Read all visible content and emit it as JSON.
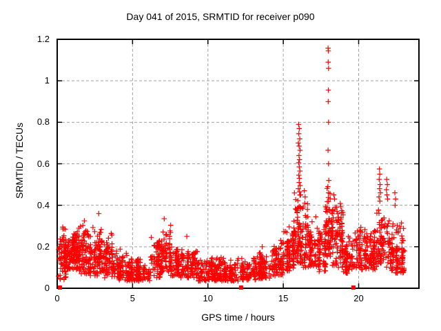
{
  "chart_data": {
    "type": "scatter",
    "title": "Day 041 of 2015, SRMTID for receiver p090",
    "xlabel": "GPS time / hours",
    "ylabel": "SRMTID / TECUs",
    "xlim": [
      0,
      24
    ],
    "ylim": [
      0,
      1.2
    ],
    "xticks": [
      0,
      5,
      10,
      15,
      20
    ],
    "xtick_labels": [
      "0",
      "5",
      "10",
      "15",
      "20"
    ],
    "yticks": [
      0,
      0.2,
      0.4,
      0.6,
      0.8,
      1,
      1.2
    ],
    "ytick_labels": [
      "0",
      "0.2",
      "0.4",
      "0.6",
      "0.8",
      "1",
      "1.2"
    ],
    "grid": true,
    "legend": "none",
    "marker": "plus",
    "seed": 7,
    "colors": {
      "marker": "#ff0000",
      "grid": "#a0a0a0",
      "axis": "#000000",
      "text": "#000000",
      "background": "#ffffff"
    },
    "band_envelope": [
      {
        "t0": 0.05,
        "t1": 0.6,
        "n": 80,
        "lo": 0.04,
        "hi": 0.3
      },
      {
        "t0": 0.6,
        "t1": 1.3,
        "n": 110,
        "lo": 0.09,
        "hi": 0.3
      },
      {
        "t0": 1.3,
        "t1": 2.1,
        "n": 100,
        "lo": 0.07,
        "hi": 0.32
      },
      {
        "t0": 2.1,
        "t1": 3.0,
        "n": 110,
        "lo": 0.06,
        "hi": 0.3
      },
      {
        "t0": 3.0,
        "t1": 3.7,
        "n": 80,
        "lo": 0.05,
        "hi": 0.28
      },
      {
        "t0": 3.7,
        "t1": 4.6,
        "n": 80,
        "lo": 0.04,
        "hi": 0.2
      },
      {
        "t0": 4.6,
        "t1": 6.2,
        "n": 140,
        "lo": 0.035,
        "hi": 0.16
      },
      {
        "t0": 6.2,
        "t1": 6.9,
        "n": 70,
        "lo": 0.05,
        "hi": 0.26
      },
      {
        "t0": 6.9,
        "t1": 7.5,
        "n": 70,
        "lo": 0.08,
        "hi": 0.33
      },
      {
        "t0": 7.5,
        "t1": 8.2,
        "n": 70,
        "lo": 0.06,
        "hi": 0.22
      },
      {
        "t0": 8.2,
        "t1": 9.3,
        "n": 100,
        "lo": 0.05,
        "hi": 0.2
      },
      {
        "t0": 9.3,
        "t1": 12.1,
        "n": 240,
        "lo": 0.035,
        "hi": 0.15
      },
      {
        "t0": 12.2,
        "t1": 13.2,
        "n": 90,
        "lo": 0.04,
        "hi": 0.15
      },
      {
        "t0": 13.2,
        "t1": 14.2,
        "n": 90,
        "lo": 0.045,
        "hi": 0.18
      },
      {
        "t0": 14.2,
        "t1": 15.0,
        "n": 80,
        "lo": 0.06,
        "hi": 0.24
      },
      {
        "t0": 15.0,
        "t1": 15.7,
        "n": 80,
        "lo": 0.08,
        "hi": 0.3
      },
      {
        "t0": 15.7,
        "t1": 16.3,
        "n": 90,
        "lo": 0.12,
        "hi": 0.46
      },
      {
        "t0": 16.3,
        "t1": 17.0,
        "n": 80,
        "lo": 0.1,
        "hi": 0.42
      },
      {
        "t0": 17.0,
        "t1": 17.8,
        "n": 80,
        "lo": 0.08,
        "hi": 0.35
      },
      {
        "t0": 17.8,
        "t1": 18.25,
        "n": 70,
        "lo": 0.15,
        "hi": 0.5
      },
      {
        "t0": 18.25,
        "t1": 19.0,
        "n": 90,
        "lo": 0.1,
        "hi": 0.42
      },
      {
        "t0": 19.0,
        "t1": 19.7,
        "n": 60,
        "lo": 0.07,
        "hi": 0.25
      },
      {
        "t0": 19.7,
        "t1": 21.2,
        "n": 150,
        "lo": 0.09,
        "hi": 0.3
      },
      {
        "t0": 21.2,
        "t1": 22.1,
        "n": 90,
        "lo": 0.1,
        "hi": 0.4
      },
      {
        "t0": 22.1,
        "t1": 23.0,
        "n": 110,
        "lo": 0.07,
        "hi": 0.33
      }
    ],
    "outliers": [
      [
        1.8,
        0.325
      ],
      [
        2.76,
        0.36
      ],
      [
        7.1,
        0.335
      ],
      [
        8.6,
        0.25
      ],
      [
        13.6,
        0.2
      ],
      [
        16.02,
        0.79
      ],
      [
        16.06,
        0.77
      ],
      [
        16.03,
        0.745
      ],
      [
        16.09,
        0.72
      ],
      [
        16.0,
        0.7
      ],
      [
        16.05,
        0.685
      ],
      [
        16.11,
        0.665
      ],
      [
        16.04,
        0.64
      ],
      [
        16.08,
        0.62
      ],
      [
        16.02,
        0.605
      ],
      [
        16.06,
        0.585
      ],
      [
        16.1,
        0.565
      ],
      [
        16.03,
        0.545
      ],
      [
        16.07,
        0.53
      ],
      [
        16.05,
        0.51
      ],
      [
        16.12,
        0.495
      ],
      [
        16.0,
        0.48
      ],
      [
        16.08,
        0.465
      ],
      [
        16.15,
        0.45
      ],
      [
        16.4,
        0.47
      ],
      [
        16.45,
        0.44
      ],
      [
        16.42,
        0.41
      ],
      [
        16.6,
        0.38
      ],
      [
        17.97,
        1.157
      ],
      [
        17.99,
        1.144
      ],
      [
        17.98,
        1.09
      ],
      [
        18.0,
        1.06
      ],
      [
        17.99,
        0.955
      ],
      [
        17.98,
        0.9
      ],
      [
        18.0,
        0.8
      ],
      [
        17.97,
        0.665
      ],
      [
        18.0,
        0.6
      ],
      [
        18.02,
        0.52
      ],
      [
        17.96,
        0.49
      ],
      [
        18.0,
        0.46
      ],
      [
        18.35,
        0.45
      ],
      [
        18.4,
        0.43
      ],
      [
        21.38,
        0.575
      ],
      [
        21.4,
        0.55
      ],
      [
        21.36,
        0.525
      ],
      [
        21.42,
        0.5
      ],
      [
        21.39,
        0.48
      ],
      [
        21.44,
        0.46
      ],
      [
        21.35,
        0.44
      ],
      [
        21.41,
        0.42
      ],
      [
        21.86,
        0.525
      ],
      [
        21.9,
        0.5
      ],
      [
        21.84,
        0.475
      ],
      [
        21.88,
        0.45
      ],
      [
        21.92,
        0.43
      ],
      [
        22.4,
        0.46
      ],
      [
        22.45,
        0.43
      ],
      [
        22.42,
        0.4
      ]
    ],
    "zero_points": [
      0.18,
      12.2,
      19.65
    ]
  }
}
